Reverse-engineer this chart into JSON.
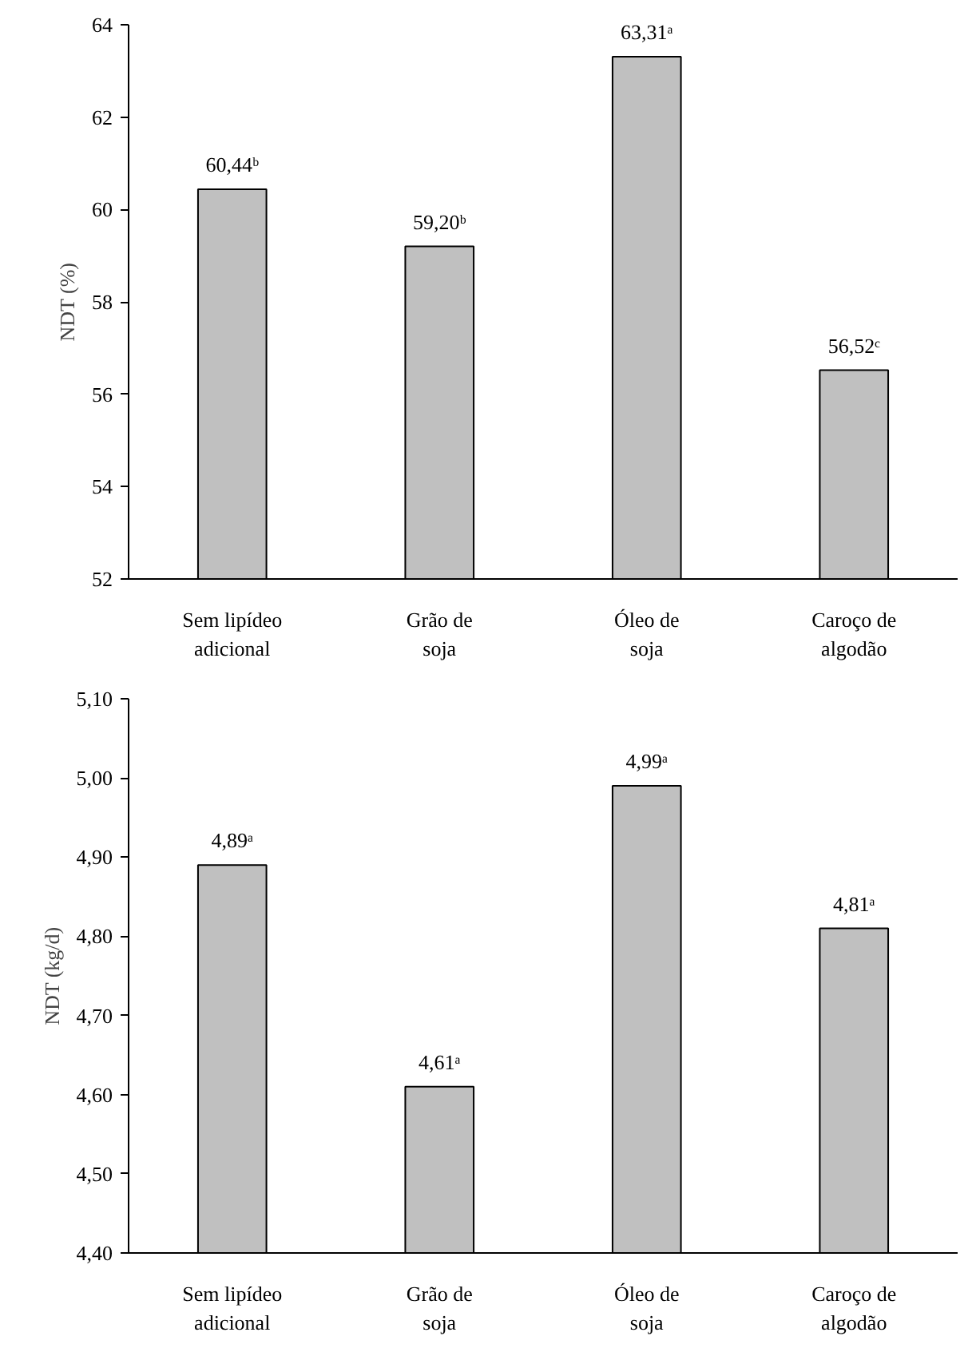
{
  "chart_data": [
    {
      "type": "bar",
      "ylabel": "NDT (%)",
      "categories": [
        "Sem lipídeo\nadicional",
        "Grão de\nsoja",
        "Óleo de\nsoja",
        "Caroço de\nalgodão"
      ],
      "values": [
        60.44,
        59.2,
        63.31,
        56.52
      ],
      "value_labels": [
        "60,44ᵇ",
        "59,20ᵇ",
        "63,31ᵃ",
        "56,52ᶜ"
      ],
      "color": "#c0c0c0",
      "ylim": [
        52,
        64
      ],
      "yticks": [
        52,
        54,
        56,
        58,
        60,
        62,
        64
      ],
      "grid": false
    },
    {
      "type": "bar",
      "ylabel": "NDT (kg/d)",
      "categories": [
        "Sem lipídeo\nadicional",
        "Grão de\nsoja",
        "Óleo de\nsoja",
        "Caroço de\nalgodão"
      ],
      "values": [
        4.89,
        4.61,
        4.99,
        4.81
      ],
      "value_labels": [
        "4,89ᵃ",
        "4,61ᵃ",
        "4,99ᵃ",
        "4,81ᵃ"
      ],
      "color": "#c0c0c0",
      "ylim": [
        4.4,
        5.1
      ],
      "yticks": [
        {
          "value": 4.4,
          "label": "4,40"
        },
        {
          "value": 4.5,
          "label": "4,50"
        },
        {
          "value": 4.6,
          "label": "4,60"
        },
        {
          "value": 4.7,
          "label": "4,70"
        },
        {
          "value": 4.8,
          "label": "4,80"
        },
        {
          "value": 4.9,
          "label": "4,90"
        },
        {
          "value": 5.0,
          "label": "5,00"
        },
        {
          "value": 5.1,
          "label": "5,10"
        }
      ],
      "grid": false
    }
  ]
}
